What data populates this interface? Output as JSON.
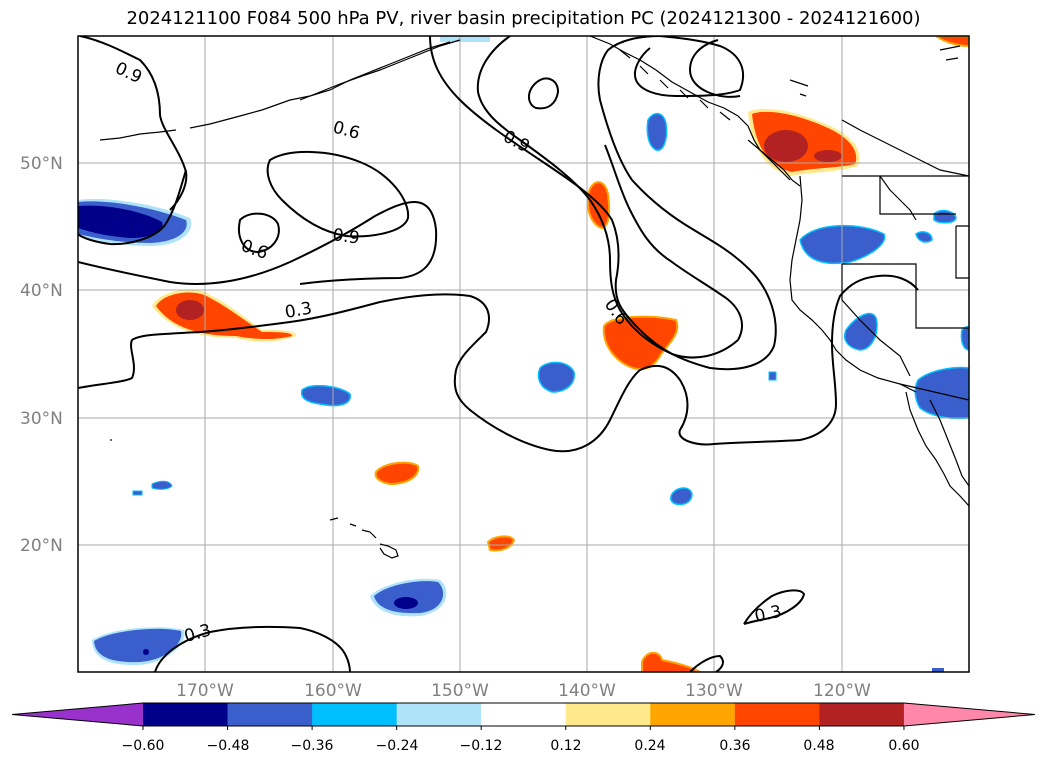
{
  "title": "2024121100 F084 500 hPa PV, river basin precipitation PC (2024121300 - 2024121600)",
  "map": {
    "projection": "PlateCarree",
    "lon_range": [
      -180,
      -110
    ],
    "lat_range": [
      10,
      60
    ],
    "lon_ticks": [
      "170°W",
      "160°W",
      "150°W",
      "140°W",
      "130°W",
      "120°W"
    ],
    "lat_ticks": [
      "50°N",
      "40°N",
      "30°N",
      "20°N"
    ],
    "grid": true,
    "coastlines": true,
    "features": [
      "Aleutian Islands",
      "Alaska coast",
      "Hawaiian Islands",
      "US west coast",
      "Canada–US border",
      "Baja California"
    ]
  },
  "contours": {
    "field": "500 hPa PV",
    "color": "#000000",
    "labels": [
      "0.9",
      "0.6",
      "0.9",
      "0.6",
      "0.9",
      "0.6",
      "0.3",
      "0.3",
      "0.3"
    ]
  },
  "colorbar": {
    "orientation": "horizontal",
    "extend": "both",
    "ticks": [
      "−0.60",
      "−0.48",
      "−0.36",
      "−0.24",
      "−0.12",
      "0.12",
      "0.24",
      "0.36",
      "0.48",
      "0.60"
    ],
    "colors": [
      "#9932cc",
      "#00008b",
      "#3a5fcd",
      "#00bfff",
      "#aee3fa",
      "#ffffff",
      "#ffe98c",
      "#ffa500",
      "#ff4500",
      "#b22222",
      "#ff88aa"
    ]
  }
}
